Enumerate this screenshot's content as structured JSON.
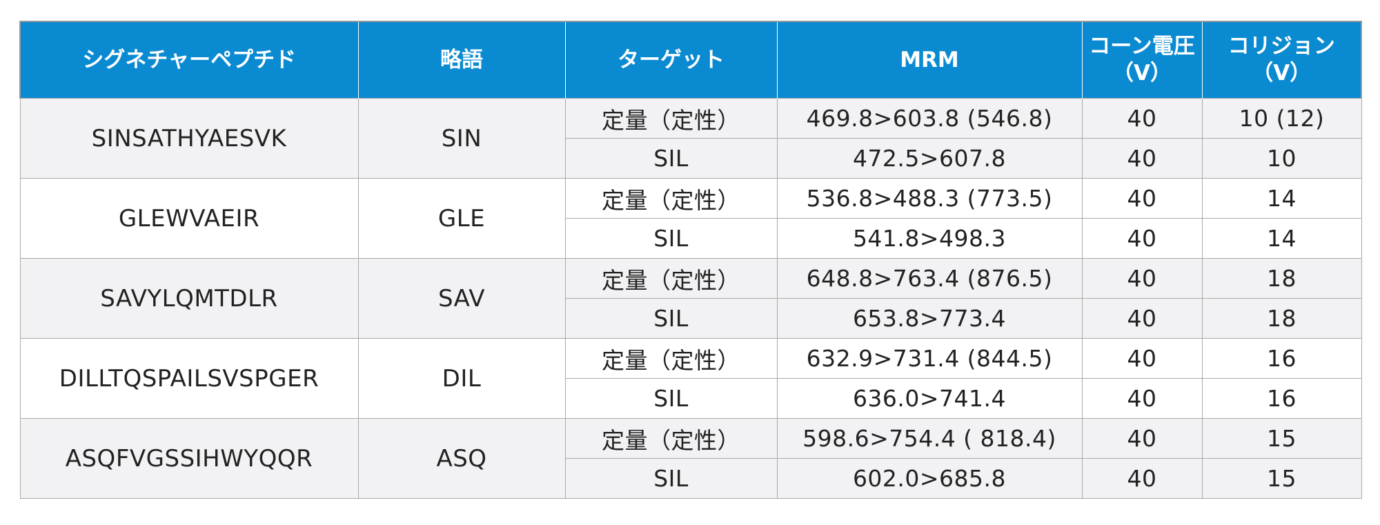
{
  "headers": {
    "peptide": "シグネチャーペプチド",
    "abbr": "略語",
    "target": "ターゲット",
    "mrm": "MRM",
    "cone_line1": "コーン電圧",
    "cone_line2": "（V）",
    "collision_line1": "コリジョン",
    "collision_line2": "（V）"
  },
  "rows": [
    {
      "peptide": "SINSATHYAESVK",
      "abbr": "SIN",
      "quant": {
        "target": "定量（定性）",
        "mrm": "469.8>603.8 (546.8)",
        "cone": "40",
        "collision": "10 (12)"
      },
      "sil": {
        "target": "SIL",
        "mrm": "472.5>607.8",
        "cone": "40",
        "collision": "10"
      }
    },
    {
      "peptide": "GLEWVAEIR",
      "abbr": "GLE",
      "quant": {
        "target": "定量（定性）",
        "mrm": "536.8>488.3 (773.5)",
        "cone": "40",
        "collision": "14"
      },
      "sil": {
        "target": "SIL",
        "mrm": "541.8>498.3",
        "cone": "40",
        "collision": "14"
      }
    },
    {
      "peptide": "SAVYLQMTDLR",
      "abbr": "SAV",
      "quant": {
        "target": "定量（定性）",
        "mrm": "648.8>763.4 (876.5)",
        "cone": "40",
        "collision": "18"
      },
      "sil": {
        "target": "SIL",
        "mrm": "653.8>773.4",
        "cone": "40",
        "collision": "18"
      }
    },
    {
      "peptide": "DILLTQSPAILSVSPGER",
      "abbr": "DIL",
      "quant": {
        "target": "定量（定性）",
        "mrm": "632.9>731.4 (844.5)",
        "cone": "40",
        "collision": "16"
      },
      "sil": {
        "target": "SIL",
        "mrm": "636.0>741.4",
        "cone": "40",
        "collision": "16"
      }
    },
    {
      "peptide": "ASQFVGSSIHWYQQR",
      "abbr": "ASQ",
      "quant": {
        "target": "定量（定性）",
        "mrm": "598.6>754.4 ( 818.4)",
        "cone": "40",
        "collision": "15"
      },
      "sil": {
        "target": "SIL",
        "mrm": "602.0>685.8",
        "cone": "40",
        "collision": "15"
      }
    }
  ]
}
